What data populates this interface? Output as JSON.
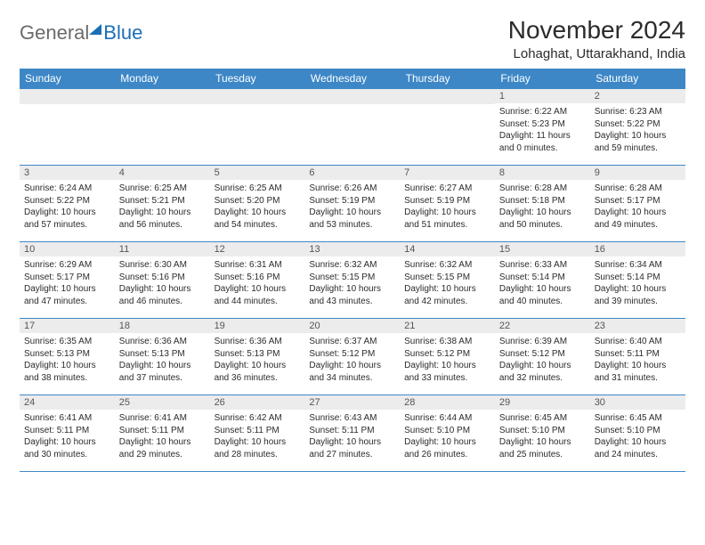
{
  "logo": {
    "general": "General",
    "blue": "Blue"
  },
  "header": {
    "month_title": "November 2024",
    "location": "Lohaghat, Uttarakhand, India"
  },
  "calendar": {
    "header_bg": "#3d87c7",
    "header_fg": "#ffffff",
    "daynum_bg": "#ececec",
    "border_color": "#3d87c7",
    "columns": [
      "Sunday",
      "Monday",
      "Tuesday",
      "Wednesday",
      "Thursday",
      "Friday",
      "Saturday"
    ],
    "weeks": [
      [
        {
          "blank": true
        },
        {
          "blank": true
        },
        {
          "blank": true
        },
        {
          "blank": true
        },
        {
          "blank": true
        },
        {
          "day": "1",
          "sunrise": "Sunrise: 6:22 AM",
          "sunset": "Sunset: 5:23 PM",
          "daylight": "Daylight: 11 hours and 0 minutes."
        },
        {
          "day": "2",
          "sunrise": "Sunrise: 6:23 AM",
          "sunset": "Sunset: 5:22 PM",
          "daylight": "Daylight: 10 hours and 59 minutes."
        }
      ],
      [
        {
          "day": "3",
          "sunrise": "Sunrise: 6:24 AM",
          "sunset": "Sunset: 5:22 PM",
          "daylight": "Daylight: 10 hours and 57 minutes."
        },
        {
          "day": "4",
          "sunrise": "Sunrise: 6:25 AM",
          "sunset": "Sunset: 5:21 PM",
          "daylight": "Daylight: 10 hours and 56 minutes."
        },
        {
          "day": "5",
          "sunrise": "Sunrise: 6:25 AM",
          "sunset": "Sunset: 5:20 PM",
          "daylight": "Daylight: 10 hours and 54 minutes."
        },
        {
          "day": "6",
          "sunrise": "Sunrise: 6:26 AM",
          "sunset": "Sunset: 5:19 PM",
          "daylight": "Daylight: 10 hours and 53 minutes."
        },
        {
          "day": "7",
          "sunrise": "Sunrise: 6:27 AM",
          "sunset": "Sunset: 5:19 PM",
          "daylight": "Daylight: 10 hours and 51 minutes."
        },
        {
          "day": "8",
          "sunrise": "Sunrise: 6:28 AM",
          "sunset": "Sunset: 5:18 PM",
          "daylight": "Daylight: 10 hours and 50 minutes."
        },
        {
          "day": "9",
          "sunrise": "Sunrise: 6:28 AM",
          "sunset": "Sunset: 5:17 PM",
          "daylight": "Daylight: 10 hours and 49 minutes."
        }
      ],
      [
        {
          "day": "10",
          "sunrise": "Sunrise: 6:29 AM",
          "sunset": "Sunset: 5:17 PM",
          "daylight": "Daylight: 10 hours and 47 minutes."
        },
        {
          "day": "11",
          "sunrise": "Sunrise: 6:30 AM",
          "sunset": "Sunset: 5:16 PM",
          "daylight": "Daylight: 10 hours and 46 minutes."
        },
        {
          "day": "12",
          "sunrise": "Sunrise: 6:31 AM",
          "sunset": "Sunset: 5:16 PM",
          "daylight": "Daylight: 10 hours and 44 minutes."
        },
        {
          "day": "13",
          "sunrise": "Sunrise: 6:32 AM",
          "sunset": "Sunset: 5:15 PM",
          "daylight": "Daylight: 10 hours and 43 minutes."
        },
        {
          "day": "14",
          "sunrise": "Sunrise: 6:32 AM",
          "sunset": "Sunset: 5:15 PM",
          "daylight": "Daylight: 10 hours and 42 minutes."
        },
        {
          "day": "15",
          "sunrise": "Sunrise: 6:33 AM",
          "sunset": "Sunset: 5:14 PM",
          "daylight": "Daylight: 10 hours and 40 minutes."
        },
        {
          "day": "16",
          "sunrise": "Sunrise: 6:34 AM",
          "sunset": "Sunset: 5:14 PM",
          "daylight": "Daylight: 10 hours and 39 minutes."
        }
      ],
      [
        {
          "day": "17",
          "sunrise": "Sunrise: 6:35 AM",
          "sunset": "Sunset: 5:13 PM",
          "daylight": "Daylight: 10 hours and 38 minutes."
        },
        {
          "day": "18",
          "sunrise": "Sunrise: 6:36 AM",
          "sunset": "Sunset: 5:13 PM",
          "daylight": "Daylight: 10 hours and 37 minutes."
        },
        {
          "day": "19",
          "sunrise": "Sunrise: 6:36 AM",
          "sunset": "Sunset: 5:13 PM",
          "daylight": "Daylight: 10 hours and 36 minutes."
        },
        {
          "day": "20",
          "sunrise": "Sunrise: 6:37 AM",
          "sunset": "Sunset: 5:12 PM",
          "daylight": "Daylight: 10 hours and 34 minutes."
        },
        {
          "day": "21",
          "sunrise": "Sunrise: 6:38 AM",
          "sunset": "Sunset: 5:12 PM",
          "daylight": "Daylight: 10 hours and 33 minutes."
        },
        {
          "day": "22",
          "sunrise": "Sunrise: 6:39 AM",
          "sunset": "Sunset: 5:12 PM",
          "daylight": "Daylight: 10 hours and 32 minutes."
        },
        {
          "day": "23",
          "sunrise": "Sunrise: 6:40 AM",
          "sunset": "Sunset: 5:11 PM",
          "daylight": "Daylight: 10 hours and 31 minutes."
        }
      ],
      [
        {
          "day": "24",
          "sunrise": "Sunrise: 6:41 AM",
          "sunset": "Sunset: 5:11 PM",
          "daylight": "Daylight: 10 hours and 30 minutes."
        },
        {
          "day": "25",
          "sunrise": "Sunrise: 6:41 AM",
          "sunset": "Sunset: 5:11 PM",
          "daylight": "Daylight: 10 hours and 29 minutes."
        },
        {
          "day": "26",
          "sunrise": "Sunrise: 6:42 AM",
          "sunset": "Sunset: 5:11 PM",
          "daylight": "Daylight: 10 hours and 28 minutes."
        },
        {
          "day": "27",
          "sunrise": "Sunrise: 6:43 AM",
          "sunset": "Sunset: 5:11 PM",
          "daylight": "Daylight: 10 hours and 27 minutes."
        },
        {
          "day": "28",
          "sunrise": "Sunrise: 6:44 AM",
          "sunset": "Sunset: 5:10 PM",
          "daylight": "Daylight: 10 hours and 26 minutes."
        },
        {
          "day": "29",
          "sunrise": "Sunrise: 6:45 AM",
          "sunset": "Sunset: 5:10 PM",
          "daylight": "Daylight: 10 hours and 25 minutes."
        },
        {
          "day": "30",
          "sunrise": "Sunrise: 6:45 AM",
          "sunset": "Sunset: 5:10 PM",
          "daylight": "Daylight: 10 hours and 24 minutes."
        }
      ]
    ]
  }
}
